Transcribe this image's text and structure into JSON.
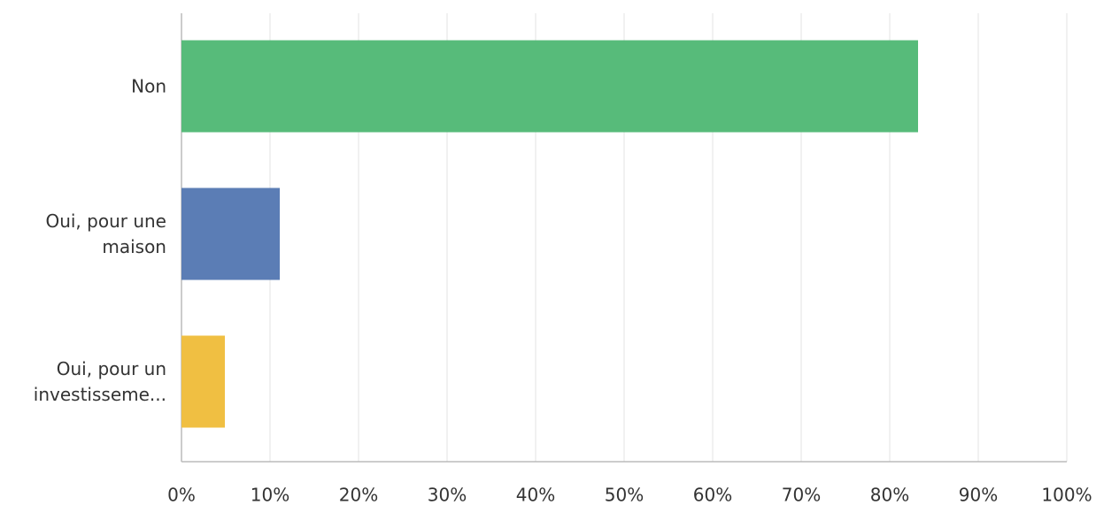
{
  "chart_data": {
    "type": "barh",
    "categories": [
      "Non",
      "Oui, pour une maison",
      "Oui, pour un investisseme..."
    ],
    "values": [
      83.2,
      11.1,
      4.9
    ],
    "colors": [
      "#57bb7a",
      "#5b7db5",
      "#f0bf42"
    ],
    "xlim": [
      0,
      100
    ],
    "xticks": [
      {
        "value": 0,
        "label": "0%"
      },
      {
        "value": 10,
        "label": "10%"
      },
      {
        "value": 20,
        "label": "20%"
      },
      {
        "value": 30,
        "label": "30%"
      },
      {
        "value": 40,
        "label": "40%"
      },
      {
        "value": 50,
        "label": "50%"
      },
      {
        "value": 60,
        "label": "60%"
      },
      {
        "value": 70,
        "label": "70%"
      },
      {
        "value": 80,
        "label": "80%"
      },
      {
        "value": 90,
        "label": "90%"
      },
      {
        "value": 100,
        "label": "100%"
      }
    ],
    "grid": true
  }
}
